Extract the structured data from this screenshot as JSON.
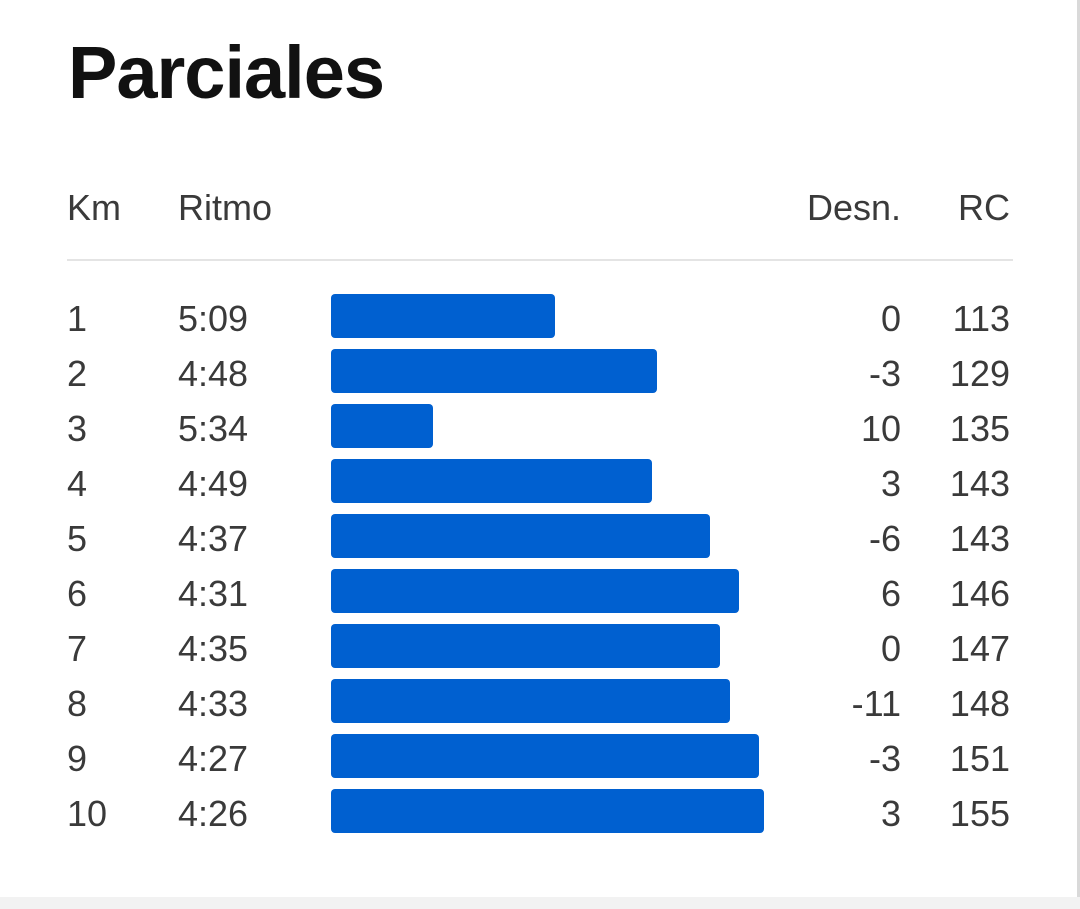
{
  "title": "Parciales",
  "headers": {
    "km": "Km",
    "pace": "Ritmo",
    "elevation": "Desn.",
    "heart_rate": "RC"
  },
  "accent_color": "#0060d0",
  "splits": [
    {
      "km": "1",
      "pace": "5:09",
      "elevation": "0",
      "heart_rate": "113",
      "pace_seconds": 309
    },
    {
      "km": "2",
      "pace": "4:48",
      "elevation": "-3",
      "heart_rate": "129",
      "pace_seconds": 288
    },
    {
      "km": "3",
      "pace": "5:34",
      "elevation": "10",
      "heart_rate": "135",
      "pace_seconds": 334
    },
    {
      "km": "4",
      "pace": "4:49",
      "elevation": "3",
      "heart_rate": "143",
      "pace_seconds": 289
    },
    {
      "km": "5",
      "pace": "4:37",
      "elevation": "-6",
      "heart_rate": "143",
      "pace_seconds": 277
    },
    {
      "km": "6",
      "pace": "4:31",
      "elevation": "6",
      "heart_rate": "146",
      "pace_seconds": 271
    },
    {
      "km": "7",
      "pace": "4:35",
      "elevation": "0",
      "heart_rate": "147",
      "pace_seconds": 275
    },
    {
      "km": "8",
      "pace": "4:33",
      "elevation": "-11",
      "heart_rate": "148",
      "pace_seconds": 273
    },
    {
      "km": "9",
      "pace": "4:27",
      "elevation": "-3",
      "heart_rate": "151",
      "pace_seconds": 267
    },
    {
      "km": "10",
      "pace": "4:26",
      "elevation": "3",
      "heart_rate": "155",
      "pace_seconds": 266
    }
  ]
}
